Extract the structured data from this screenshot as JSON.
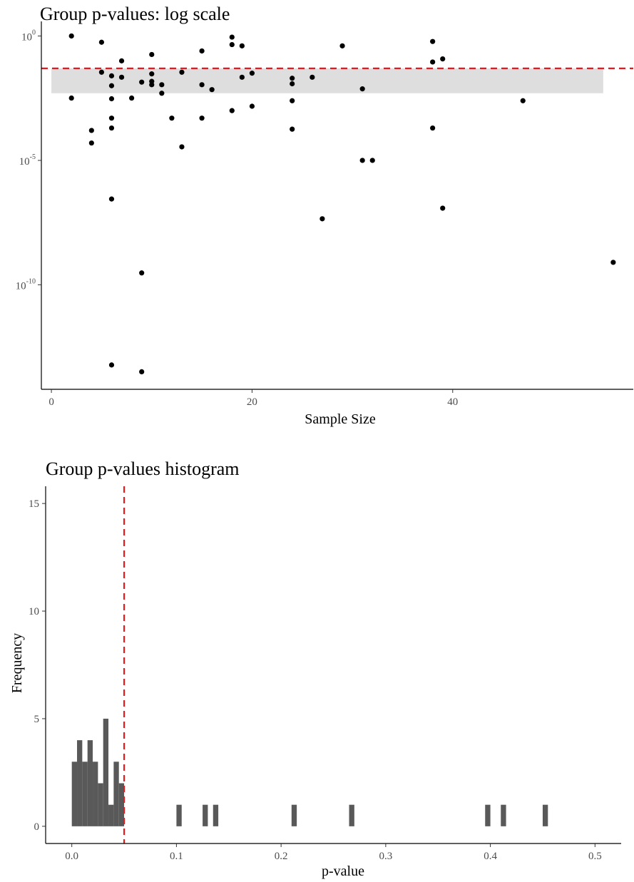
{
  "chart_data": [
    {
      "type": "scatter",
      "title": "Group p-values: log scale",
      "xlabel": "Sample Size",
      "ylabel": "",
      "xlim": [
        -1,
        58
      ],
      "ylim_log10": [
        -14.2,
        0.3
      ],
      "y_scale": "log10",
      "x_ticks": [
        0,
        20,
        40
      ],
      "y_ticks": [
        {
          "base": "10",
          "exp": "0",
          "value": 1
        },
        {
          "base": "10",
          "exp": "-5",
          "value": 1e-05
        },
        {
          "base": "10",
          "exp": "-10",
          "value": 1e-10
        }
      ],
      "reference_line": {
        "y": 0.05,
        "style": "dashed",
        "color": "#e41a1c"
      },
      "band": {
        "x": [
          0,
          55
        ],
        "y": [
          0.005,
          0.05
        ],
        "color": "#dedede"
      },
      "grid": false,
      "points": [
        {
          "x": 2,
          "y": 1.0
        },
        {
          "x": 2,
          "y": 0.0032
        },
        {
          "x": 4,
          "y": 0.00016
        },
        {
          "x": 4,
          "y": 5e-05
        },
        {
          "x": 5,
          "y": 0.56
        },
        {
          "x": 5,
          "y": 0.035
        },
        {
          "x": 6,
          "y": 0.025
        },
        {
          "x": 6,
          "y": 0.01
        },
        {
          "x": 6,
          "y": 0.003
        },
        {
          "x": 6,
          "y": 0.0005
        },
        {
          "x": 6,
          "y": 0.0002
        },
        {
          "x": 6,
          "y": 2.8e-07
        },
        {
          "x": 6,
          "y": 6e-14
        },
        {
          "x": 7,
          "y": 0.1
        },
        {
          "x": 7,
          "y": 0.022
        },
        {
          "x": 8,
          "y": 0.0032
        },
        {
          "x": 9,
          "y": 0.014
        },
        {
          "x": 9,
          "y": 3e-10
        },
        {
          "x": 9,
          "y": 3.2e-14
        },
        {
          "x": 10,
          "y": 0.18
        },
        {
          "x": 10,
          "y": 0.03
        },
        {
          "x": 10,
          "y": 0.015
        },
        {
          "x": 10,
          "y": 0.011
        },
        {
          "x": 11,
          "y": 0.011
        },
        {
          "x": 11,
          "y": 0.005
        },
        {
          "x": 12,
          "y": 0.0005
        },
        {
          "x": 13,
          "y": 0.035
        },
        {
          "x": 13,
          "y": 3.5e-05
        },
        {
          "x": 15,
          "y": 0.25
        },
        {
          "x": 15,
          "y": 0.011
        },
        {
          "x": 15,
          "y": 0.0005
        },
        {
          "x": 16,
          "y": 0.007
        },
        {
          "x": 18,
          "y": 0.9
        },
        {
          "x": 18,
          "y": 0.45
        },
        {
          "x": 18,
          "y": 0.001
        },
        {
          "x": 19,
          "y": 0.4
        },
        {
          "x": 19,
          "y": 0.022
        },
        {
          "x": 20,
          "y": 0.032
        },
        {
          "x": 20,
          "y": 0.0015
        },
        {
          "x": 24,
          "y": 0.02
        },
        {
          "x": 24,
          "y": 0.012
        },
        {
          "x": 24,
          "y": 0.0025
        },
        {
          "x": 24,
          "y": 0.00018
        },
        {
          "x": 26,
          "y": 0.022
        },
        {
          "x": 27,
          "y": 4.5e-08
        },
        {
          "x": 29,
          "y": 0.4
        },
        {
          "x": 31,
          "y": 0.0075
        },
        {
          "x": 31,
          "y": 1e-05
        },
        {
          "x": 32,
          "y": 1e-05
        },
        {
          "x": 38,
          "y": 0.6
        },
        {
          "x": 38,
          "y": 0.09
        },
        {
          "x": 38,
          "y": 0.0002
        },
        {
          "x": 39,
          "y": 0.12
        },
        {
          "x": 39,
          "y": 1.2e-07
        },
        {
          "x": 47,
          "y": 0.0025
        },
        {
          "x": 56,
          "y": 8e-10
        }
      ]
    },
    {
      "type": "histogram",
      "title": "Group p-values histogram",
      "xlabel": "p-value",
      "ylabel": "Frequency",
      "xlim": [
        -0.025,
        0.525
      ],
      "ylim": [
        -0.8,
        15.8
      ],
      "x_ticks": [
        "0.0",
        "0.1",
        "0.2",
        "0.3",
        "0.4",
        "0.5"
      ],
      "x_tick_values": [
        0,
        0.1,
        0.2,
        0.3,
        0.4,
        0.5
      ],
      "y_ticks": [
        "0",
        "5",
        "10",
        "15"
      ],
      "y_tick_values": [
        0,
        5,
        10,
        15
      ],
      "bin_width": 0.005,
      "bar_color": "#595959",
      "reference_line": {
        "x": 0.05,
        "style": "dashed",
        "color": "#e41a1c"
      },
      "grid": false,
      "bins": [
        {
          "x0": 0.0,
          "count": 3
        },
        {
          "x0": 0.005,
          "count": 4
        },
        {
          "x0": 0.01,
          "count": 3
        },
        {
          "x0": 0.015,
          "count": 4
        },
        {
          "x0": 0.02,
          "count": 3
        },
        {
          "x0": 0.025,
          "count": 2
        },
        {
          "x0": 0.03,
          "count": 5
        },
        {
          "x0": 0.035,
          "count": 1
        },
        {
          "x0": 0.04,
          "count": 3
        },
        {
          "x0": 0.045,
          "count": 2
        },
        {
          "x0": 0.1,
          "count": 1
        },
        {
          "x0": 0.125,
          "count": 1
        },
        {
          "x0": 0.135,
          "count": 1
        },
        {
          "x0": 0.21,
          "count": 1
        },
        {
          "x0": 0.265,
          "count": 1
        },
        {
          "x0": 0.395,
          "count": 1
        },
        {
          "x0": 0.41,
          "count": 1
        },
        {
          "x0": 0.45,
          "count": 1
        }
      ]
    }
  ]
}
